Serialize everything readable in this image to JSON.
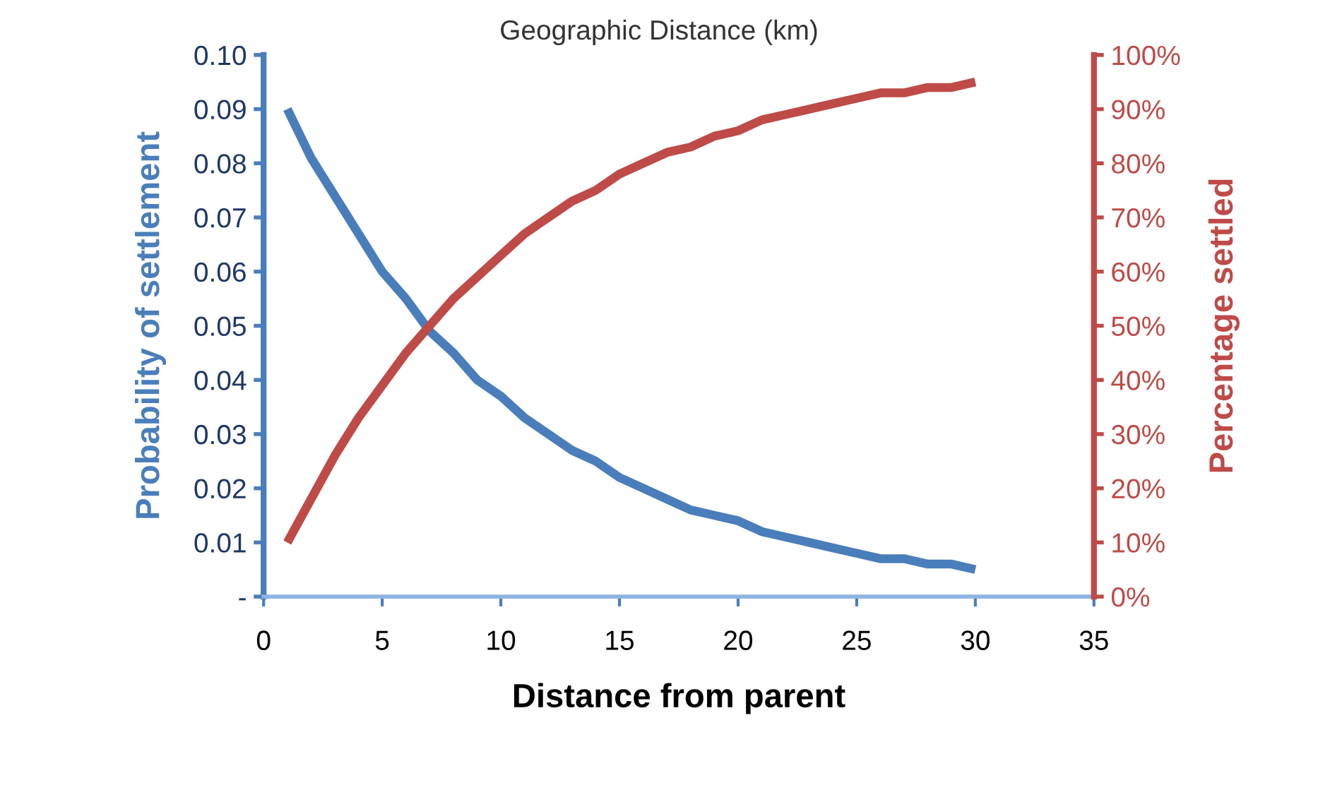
{
  "chart_data": {
    "type": "line",
    "title": "Geographic Distance (km)",
    "xlabel": "Distance from parent",
    "ylabel": "Probability of settlement",
    "y2label": "Percentage settled",
    "x": [
      1,
      2,
      3,
      4,
      5,
      6,
      7,
      8,
      9,
      10,
      11,
      12,
      13,
      14,
      15,
      16,
      17,
      18,
      19,
      20,
      21,
      22,
      23,
      24,
      25,
      26,
      27,
      28,
      29,
      30
    ],
    "series": [
      {
        "color": "#4a7ebb",
        "values": [
          0.09,
          0.081,
          0.074,
          0.067,
          0.06,
          0.055,
          0.049,
          0.045,
          0.04,
          0.037,
          0.033,
          0.03,
          0.027,
          0.025,
          0.022,
          0.02,
          0.018,
          0.016,
          0.015,
          0.014,
          0.012,
          0.011,
          0.01,
          0.009,
          0.008,
          0.007,
          0.007,
          0.006,
          0.006,
          0.005
        ]
      },
      {
        "color": "#be4b48",
        "axis": "y2",
        "values": [
          10,
          18,
          26,
          33,
          39,
          45,
          50,
          55,
          59,
          63,
          67,
          70,
          73,
          75,
          78,
          80,
          82,
          83,
          85,
          86,
          88,
          89,
          90,
          91,
          92,
          93,
          93,
          94,
          94,
          95
        ]
      }
    ],
    "xlim": [
      0,
      35
    ],
    "xticks": [
      0,
      5,
      10,
      15,
      20,
      25,
      30,
      35
    ],
    "ylim": [
      0,
      0.1
    ],
    "yticks": [
      {
        "value": 0,
        "label": "-"
      },
      {
        "value": 0.01,
        "label": "0.01"
      },
      {
        "value": 0.02,
        "label": "0.02"
      },
      {
        "value": 0.03,
        "label": "0.03"
      },
      {
        "value": 0.04,
        "label": "0.04"
      },
      {
        "value": 0.05,
        "label": "0.05"
      },
      {
        "value": 0.06,
        "label": "0.06"
      },
      {
        "value": 0.07,
        "label": "0.07"
      },
      {
        "value": 0.08,
        "label": "0.08"
      },
      {
        "value": 0.09,
        "label": "0.09"
      },
      {
        "value": 0.1,
        "label": "0.10"
      }
    ],
    "y2lim": [
      0,
      100
    ],
    "y2ticks": [
      {
        "value": 0,
        "label": "0%"
      },
      {
        "value": 10,
        "label": "10%"
      },
      {
        "value": 20,
        "label": "20%"
      },
      {
        "value": 30,
        "label": "30%"
      },
      {
        "value": 40,
        "label": "40%"
      },
      {
        "value": 50,
        "label": "50%"
      },
      {
        "value": 60,
        "label": "60%"
      },
      {
        "value": 70,
        "label": "70%"
      },
      {
        "value": 80,
        "label": "80%"
      },
      {
        "value": 90,
        "label": "90%"
      },
      {
        "value": 100,
        "label": "100%"
      }
    ],
    "grid": false,
    "marker": "none",
    "line_style": "solid"
  }
}
